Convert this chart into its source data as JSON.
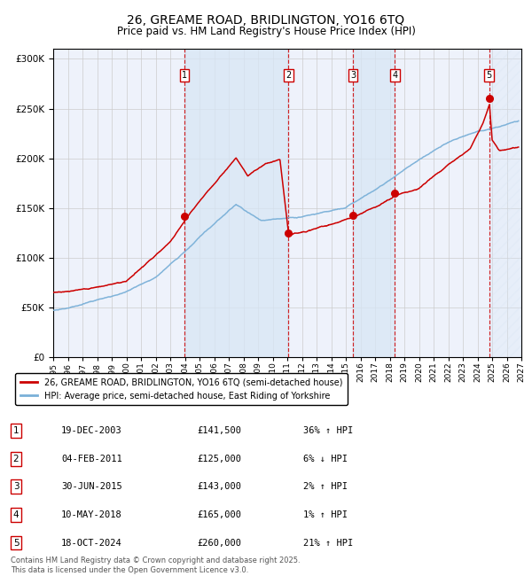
{
  "title": "26, GREAME ROAD, BRIDLINGTON, YO16 6TQ",
  "subtitle": "Price paid vs. HM Land Registry's House Price Index (HPI)",
  "bg_color": "#ffffff",
  "plot_bg_color": "#eef2fb",
  "grid_color": "#cccccc",
  "hpi_line_color": "#7ab0d8",
  "price_line_color": "#cc0000",
  "sale_marker_color": "#cc0000",
  "dashed_line_color": "#cc0000",
  "shade_color_between": "#d8e6f5",
  "transactions": [
    {
      "num": 1,
      "date_label": "19-DEC-2003",
      "date_year": 2003.97,
      "price": 141500,
      "hpi_pct": "36%",
      "hpi_dir": "↑"
    },
    {
      "num": 2,
      "date_label": "04-FEB-2011",
      "date_year": 2011.09,
      "price": 125000,
      "hpi_pct": "6%",
      "hpi_dir": "↓"
    },
    {
      "num": 3,
      "date_label": "30-JUN-2015",
      "date_year": 2015.49,
      "price": 143000,
      "hpi_pct": "2%",
      "hpi_dir": "↑"
    },
    {
      "num": 4,
      "date_label": "10-MAY-2018",
      "date_year": 2018.36,
      "price": 165000,
      "hpi_pct": "1%",
      "hpi_dir": "↑"
    },
    {
      "num": 5,
      "date_label": "18-OCT-2024",
      "date_year": 2024.79,
      "price": 260000,
      "hpi_pct": "21%",
      "hpi_dir": "↑"
    }
  ],
  "legend_property_label": "26, GREAME ROAD, BRIDLINGTON, YO16 6TQ (semi-detached house)",
  "legend_hpi_label": "HPI: Average price, semi-detached house, East Riding of Yorkshire",
  "footer_text": "Contains HM Land Registry data © Crown copyright and database right 2025.\nThis data is licensed under the Open Government Licence v3.0.",
  "xlim_start": 1995.0,
  "xlim_end": 2027.0,
  "ylim_min": 0,
  "ylim_max": 310000,
  "yticks": [
    0,
    50000,
    100000,
    150000,
    200000,
    250000,
    300000
  ],
  "xtick_start": 1995,
  "xtick_end": 2028
}
